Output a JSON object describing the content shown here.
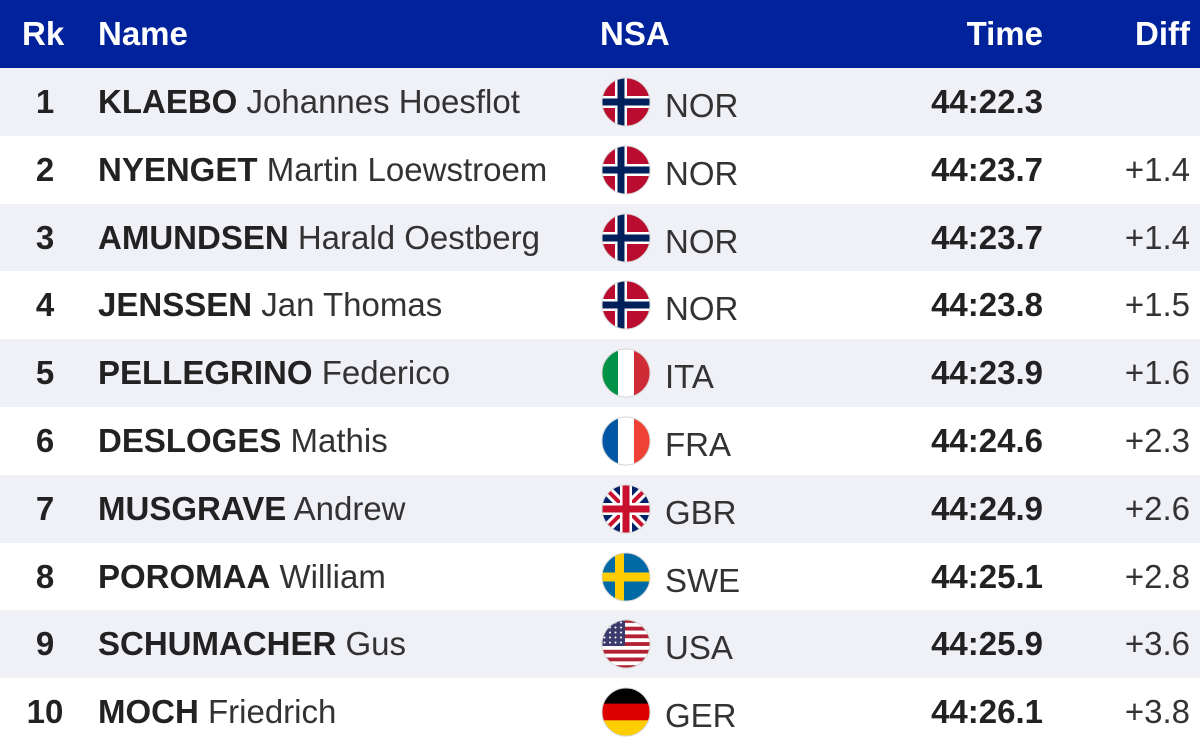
{
  "header": {
    "rank": "Rk",
    "name": "Name",
    "nsa": "NSA",
    "time": "Time",
    "diff": "Diff"
  },
  "rows": [
    {
      "rank": "1",
      "last": "KLAEBO",
      "first": "Johannes Hoesflot",
      "nsa": "NOR",
      "flag": "norway-flag-icon",
      "time": "44:22.3",
      "diff": ""
    },
    {
      "rank": "2",
      "last": "NYENGET",
      "first": "Martin Loewstroem",
      "nsa": "NOR",
      "flag": "norway-flag-icon",
      "time": "44:23.7",
      "diff": "+1.4"
    },
    {
      "rank": "3",
      "last": "AMUNDSEN",
      "first": "Harald Oestberg",
      "nsa": "NOR",
      "flag": "norway-flag-icon",
      "time": "44:23.7",
      "diff": "+1.4"
    },
    {
      "rank": "4",
      "last": "JENSSEN",
      "first": "Jan Thomas",
      "nsa": "NOR",
      "flag": "norway-flag-icon",
      "time": "44:23.8",
      "diff": "+1.5"
    },
    {
      "rank": "5",
      "last": "PELLEGRINO",
      "first": "Federico",
      "nsa": "ITA",
      "flag": "italy-flag-icon",
      "time": "44:23.9",
      "diff": "+1.6"
    },
    {
      "rank": "6",
      "last": "DESLOGES",
      "first": "Mathis",
      "nsa": "FRA",
      "flag": "france-flag-icon",
      "time": "44:24.6",
      "diff": "+2.3"
    },
    {
      "rank": "7",
      "last": "MUSGRAVE",
      "first": "Andrew",
      "nsa": "GBR",
      "flag": "uk-flag-icon",
      "time": "44:24.9",
      "diff": "+2.6"
    },
    {
      "rank": "8",
      "last": "POROMAA",
      "first": "William",
      "nsa": "SWE",
      "flag": "sweden-flag-icon",
      "time": "44:25.1",
      "diff": "+2.8"
    },
    {
      "rank": "9",
      "last": "SCHUMACHER",
      "first": "Gus",
      "nsa": "USA",
      "flag": "usa-flag-icon",
      "time": "44:25.9",
      "diff": "+3.6"
    },
    {
      "rank": "10",
      "last": "MOCH",
      "first": "Friedrich",
      "nsa": "GER",
      "flag": "germany-flag-icon",
      "time": "44:26.1",
      "diff": "+3.8"
    }
  ],
  "colors": {
    "header_bg": "#00239c",
    "header_text": "#ffffff",
    "row_alt_bg": "#f0f1f6"
  }
}
